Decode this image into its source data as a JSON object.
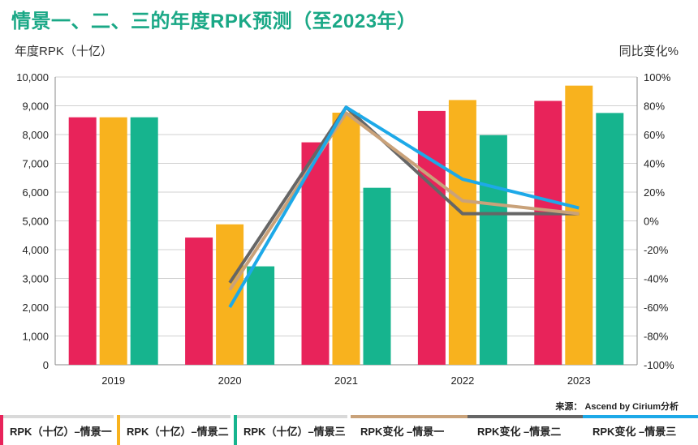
{
  "title": "情景一、二、三的年度RPK预测（至2023年）",
  "left_axis_label": "年度RPK（十亿）",
  "right_axis_label": "同比变化%",
  "source": "来源： Ascend by Cirium分析",
  "colors": {
    "bar1": "#e8235a",
    "bar2": "#f8b21e",
    "bar3": "#16b48e",
    "line1": "#c9a27a",
    "line2": "#666666",
    "line3": "#1da9e8"
  },
  "legend": [
    {
      "label": "RPK（十亿）–情景一",
      "type": "bar",
      "color": "#e8235a"
    },
    {
      "label": "RPK（十亿）–情景二",
      "type": "bar",
      "color": "#f8b21e"
    },
    {
      "label": "RPK（十亿）–情景三",
      "type": "bar",
      "color": "#16b48e"
    },
    {
      "label": "RPK变化 –情景一",
      "type": "line",
      "color": "#c9a27a"
    },
    {
      "label": "RPK变化 –情景二",
      "type": "line",
      "color": "#666666"
    },
    {
      "label": "RPK变化 –情景三",
      "type": "line",
      "color": "#1da9e8"
    }
  ],
  "chart_data": {
    "type": "bar",
    "categories": [
      "2019",
      "2020",
      "2021",
      "2022",
      "2023"
    ],
    "ylim_left": [
      0,
      10000
    ],
    "ylim_right": [
      -100,
      100
    ],
    "left_ticks": [
      "0",
      "1,000",
      "2,000",
      "3,000",
      "4,000",
      "5,000",
      "6,000",
      "7,000",
      "8,000",
      "9,000",
      "10,000"
    ],
    "right_ticks": [
      "-100%",
      "-80%",
      "-60%",
      "-40%",
      "-20%",
      "0%",
      "20%",
      "40%",
      "60%",
      "80%",
      "100%"
    ],
    "bar_series": [
      {
        "name": "RPK（十亿）–情景一",
        "values": [
          8600,
          4420,
          7730,
          8820,
          9170
        ]
      },
      {
        "name": "RPK（十亿）–情景二",
        "values": [
          8600,
          4880,
          8760,
          9200,
          9700
        ]
      },
      {
        "name": "RPK（十亿）–情景三",
        "values": [
          8600,
          3420,
          6150,
          7980,
          8750
        ]
      }
    ],
    "line_series": [
      {
        "name": "RPK变化 –情景一",
        "x": [
          "2020",
          "2021",
          "2022",
          "2023"
        ],
        "values": [
          -48,
          75,
          14,
          5
        ]
      },
      {
        "name": "RPK变化 –情景二",
        "x": [
          "2020",
          "2021",
          "2022",
          "2023"
        ],
        "values": [
          -43,
          79,
          5,
          5
        ]
      },
      {
        "name": "RPK变化 –情景三",
        "x": [
          "2020",
          "2021",
          "2022",
          "2023"
        ],
        "values": [
          -60,
          79,
          29,
          9
        ]
      }
    ],
    "grid": true
  }
}
